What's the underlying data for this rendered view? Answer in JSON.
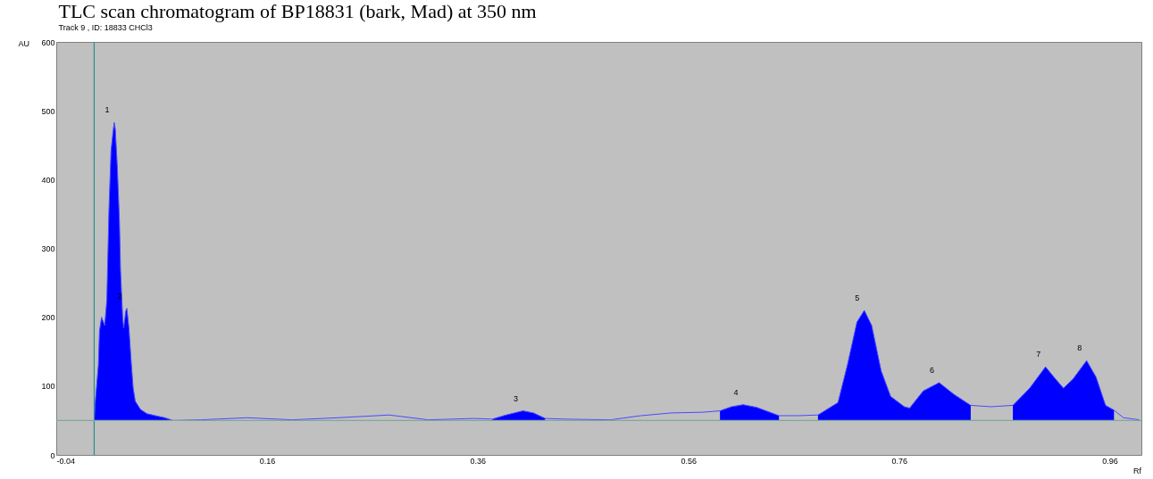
{
  "chart_data": {
    "type": "line",
    "title": "TLC scan chromatogram of BP18831 (bark, Mad) at 350 nm",
    "subtitle": "Track  9 , ID: 18833 CHCl3",
    "xlabel": "Rf",
    "ylabel": "AU",
    "x": [
      -0.004,
      -0.003,
      0.0,
      0.001,
      0.003,
      0.006,
      0.008,
      0.01,
      0.012,
      0.014,
      0.015,
      0.016,
      0.018,
      0.02,
      0.021,
      0.023,
      0.024,
      0.026,
      0.027,
      0.029,
      0.031,
      0.033,
      0.035,
      0.04,
      0.046,
      0.054,
      0.063,
      0.071,
      0.097,
      0.141,
      0.184,
      0.227,
      0.276,
      0.313,
      0.357,
      0.374,
      0.387,
      0.403,
      0.413,
      0.424,
      0.443,
      0.486,
      0.515,
      0.544,
      0.573,
      0.59,
      0.601,
      0.612,
      0.625,
      0.646,
      0.664,
      0.683,
      0.702,
      0.711,
      0.72,
      0.727,
      0.734,
      0.743,
      0.752,
      0.765,
      0.77,
      0.783,
      0.798,
      0.812,
      0.828,
      0.847,
      0.868,
      0.884,
      0.899,
      0.907,
      0.916,
      0.925,
      0.938,
      0.947,
      0.956,
      0.964,
      0.973,
      0.988
    ],
    "series": [
      {
        "type": "area",
        "color": "#0000ff",
        "values": [
          50,
          76,
          131,
          180,
          200,
          188,
          225,
          355,
          442,
          471,
          483,
          474,
          417,
          338,
          268,
          200,
          184,
          209,
          213,
          184,
          138,
          97,
          78,
          66,
          60,
          57,
          54,
          50,
          null,
          null,
          null,
          null,
          null,
          null,
          null,
          52,
          58,
          64,
          61,
          53,
          null,
          null,
          null,
          null,
          null,
          64,
          70,
          73,
          69,
          57,
          null,
          58,
          76,
          131,
          193,
          210,
          188,
          122,
          85,
          70,
          68,
          93,
          105,
          88,
          72,
          null,
          72,
          97,
          128,
          113,
          97,
          110,
          137,
          113,
          72,
          65,
          null,
          null
        ]
      },
      {
        "color": "#4a4aff",
        "values": [
          50,
          76,
          131,
          180,
          200,
          188,
          225,
          355,
          442,
          471,
          483,
          474,
          417,
          338,
          268,
          200,
          184,
          209,
          213,
          184,
          138,
          97,
          78,
          66,
          60,
          57,
          54,
          50,
          51,
          54,
          51,
          54,
          58,
          51,
          53,
          52,
          58,
          64,
          61,
          53,
          52,
          51,
          57,
          61,
          62,
          64,
          70,
          73,
          69,
          57,
          57,
          58,
          76,
          131,
          193,
          210,
          188,
          122,
          85,
          70,
          68,
          93,
          105,
          88,
          72,
          70,
          72,
          97,
          128,
          113,
          97,
          110,
          137,
          113,
          72,
          65,
          54,
          51
        ]
      }
    ],
    "xlim": [
      -0.04,
      0.99
    ],
    "xticks": [
      -0.04,
      0.16,
      0.36,
      0.56,
      0.76,
      0.96
    ],
    "ylim": [
      0,
      600
    ],
    "yticks": [
      0,
      100,
      200,
      300,
      400,
      500,
      600
    ],
    "ref_lines": [
      {
        "axis": "x",
        "value": -0.004,
        "color": "#2e8b8b"
      },
      {
        "axis": "y",
        "value": 50,
        "color": "#7fa8a0"
      }
    ],
    "annotations": [
      {
        "text": "1",
        "x": 0.015,
        "y": 483
      },
      {
        "text": "2",
        "x": 0.027,
        "y": 213
      },
      {
        "text": "3",
        "x": 0.403,
        "y": 64
      },
      {
        "text": "4",
        "x": 0.612,
        "y": 73
      },
      {
        "text": "5",
        "x": 0.727,
        "y": 210
      },
      {
        "text": "6",
        "x": 0.798,
        "y": 105
      },
      {
        "text": "7",
        "x": 0.899,
        "y": 128
      },
      {
        "text": "8",
        "x": 0.938,
        "y": 137
      }
    ],
    "grid": false
  }
}
